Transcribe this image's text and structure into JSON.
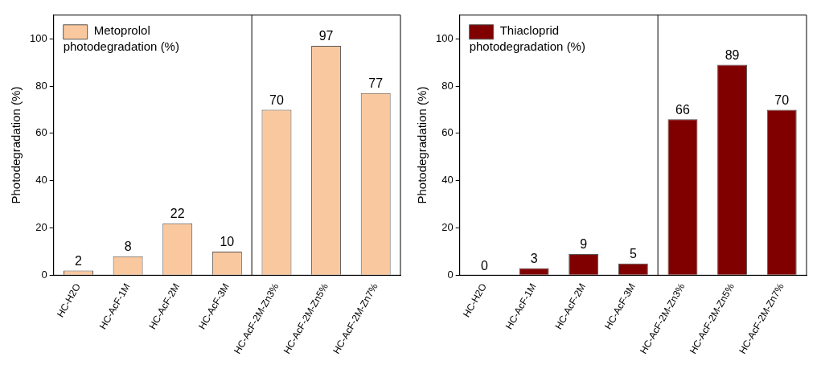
{
  "chart_data": [
    {
      "type": "bar",
      "ylabel": "Photodegradation (%)",
      "categories": [
        "HC-H2O",
        "HC-AcF-1M",
        "HC-AcF-2M",
        "HC-AcF-3M",
        "HC-AcF-2M-Zn3%",
        "HC-AcF-2M-Zn5%",
        "HC-AcF-2M-Zn7%"
      ],
      "series": [
        {
          "name": "Metoprolol photodegradation (%)",
          "color": "#fac89e",
          "values": [
            2,
            8,
            22,
            10,
            70,
            97,
            77
          ]
        }
      ],
      "ylim": [
        0,
        110
      ],
      "yticks": [
        0,
        20,
        40,
        60,
        80,
        100
      ],
      "data_labels": true,
      "legend": "top left",
      "grid": false
    },
    {
      "type": "bar",
      "ylabel": "Photodegradation (%)",
      "categories": [
        "HC-H2O",
        "HC-AcF-1M",
        "HC-AcF-2M",
        "HC-AcF-3M",
        "HC-AcF-2M-Zn3%",
        "HC-AcF-2M-Zn5%",
        "HC-AcF-2M-Zn7%"
      ],
      "series": [
        {
          "name": "Thiacloprid photodegradation (%)",
          "color": "#800000",
          "values": [
            0,
            3,
            9,
            5,
            66,
            89,
            70
          ]
        }
      ],
      "ylim": [
        0,
        110
      ],
      "yticks": [
        0,
        20,
        40,
        60,
        80,
        100
      ],
      "data_labels": true,
      "legend": "top left",
      "grid": false
    }
  ]
}
